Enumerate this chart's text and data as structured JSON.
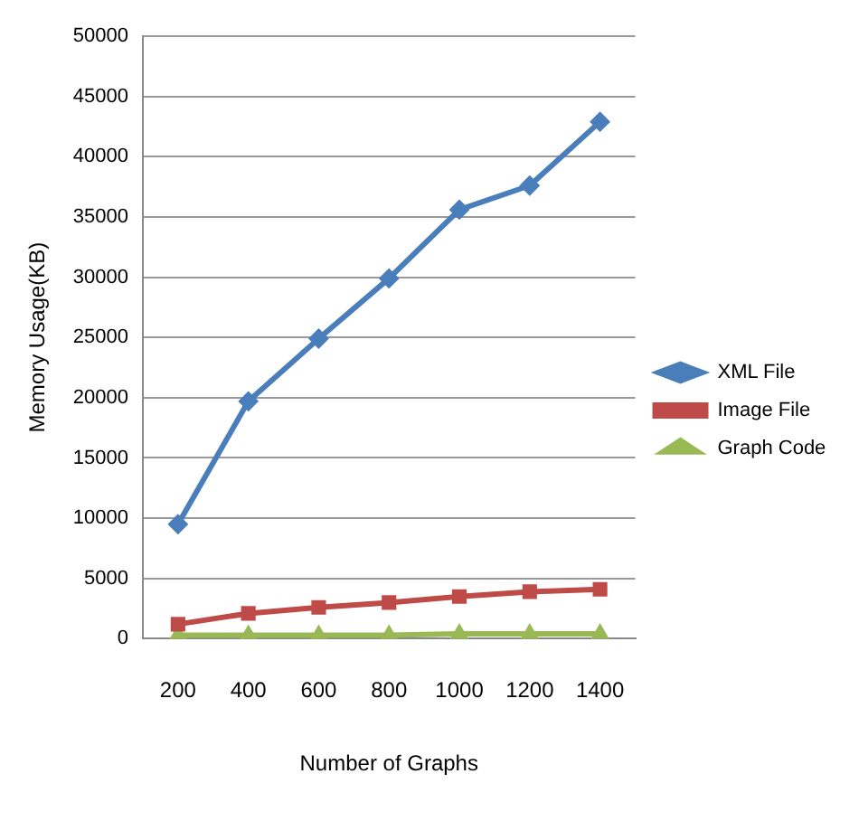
{
  "chart_data": {
    "type": "line",
    "xlabel": "Number of Graphs",
    "ylabel": "Memory Usage(KB)",
    "categories": [
      "200",
      "400",
      "600",
      "800",
      "1000",
      "1200",
      "1400"
    ],
    "series": [
      {
        "name": "XML File",
        "color": "#4a7ebb",
        "marker": "diamond",
        "values": [
          9500,
          19700,
          24900,
          29900,
          35600,
          37600,
          42900
        ]
      },
      {
        "name": "Image File",
        "color": "#be4b48",
        "marker": "square",
        "values": [
          1200,
          2100,
          2600,
          3000,
          3500,
          3900,
          4100
        ]
      },
      {
        "name": "Graph Code",
        "color": "#98b954",
        "marker": "triangle",
        "values": [
          300,
          300,
          300,
          300,
          400,
          400,
          400
        ]
      }
    ],
    "ylim": [
      0,
      50000
    ],
    "yticks": [
      0,
      5000,
      10000,
      15000,
      20000,
      25000,
      30000,
      35000,
      40000,
      45000,
      50000
    ],
    "grid": "y",
    "legend": "right"
  }
}
